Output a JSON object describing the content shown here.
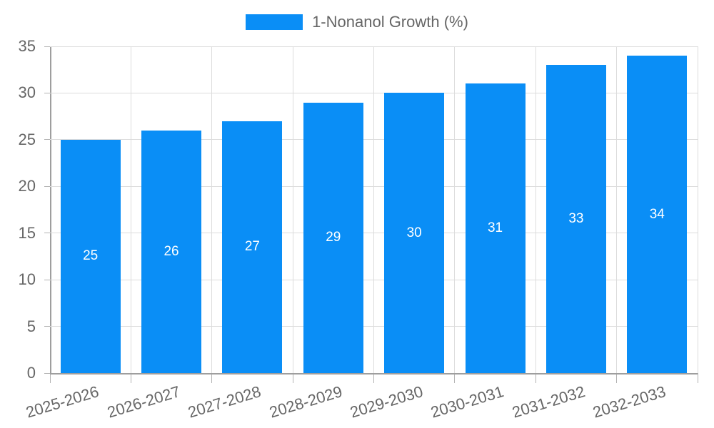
{
  "chart_data": {
    "type": "bar",
    "legend_label": "1-Nonanol Growth (%)",
    "legend_position": "top",
    "categories": [
      "2025-2026",
      "2026-2027",
      "2027-2028",
      "2028-2029",
      "2029-2030",
      "2030-2031",
      "2031-2032",
      "2032-2033"
    ],
    "values": [
      25,
      26,
      27,
      29,
      30,
      31,
      33,
      34
    ],
    "value_labels": [
      "25",
      "26",
      "27",
      "29",
      "30",
      "31",
      "33",
      "34"
    ],
    "xlabel": "",
    "ylabel": "",
    "ylim": [
      0,
      35
    ],
    "y_ticks": [
      0,
      5,
      10,
      15,
      20,
      25,
      30,
      35
    ],
    "grid": true,
    "colors": {
      "bar": "#0a8ef6",
      "value_label": "#ffffff",
      "tick_label": "#666666",
      "legend_label": "#666666",
      "gridline": "#dcdcdc",
      "axis_line": "#9e9e9e",
      "tick_mark": "#b3b3b3",
      "background": "#ffffff"
    }
  }
}
